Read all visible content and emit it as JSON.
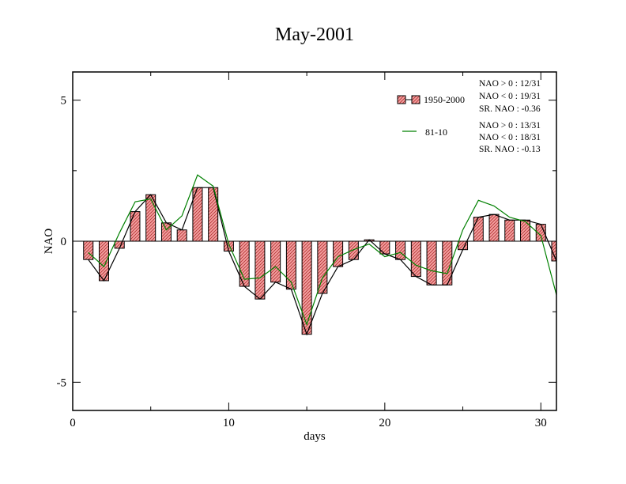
{
  "chart_data": {
    "type": "bar",
    "title": "May-2001",
    "xlabel": "days",
    "ylabel": "NAO",
    "xlim": [
      0,
      31
    ],
    "ylim": [
      -6,
      6
    ],
    "x_ticks": [
      "0",
      "10",
      "20",
      "30"
    ],
    "y_ticks": [
      "5",
      "0",
      "-5"
    ],
    "x": [
      1,
      2,
      3,
      4,
      5,
      6,
      7,
      8,
      9,
      10,
      11,
      12,
      13,
      14,
      15,
      16,
      17,
      18,
      19,
      20,
      21,
      22,
      23,
      24,
      25,
      26,
      27,
      28,
      29,
      30,
      31
    ],
    "series": [
      {
        "name": "1950-2000",
        "kind": "bar+line",
        "color": "#f08080",
        "values": [
          -0.65,
          -1.4,
          -0.25,
          1.05,
          1.65,
          0.65,
          0.4,
          1.9,
          1.9,
          -0.35,
          -1.6,
          -2.05,
          -1.45,
          -1.7,
          -3.3,
          -1.85,
          -0.9,
          -0.65,
          0.05,
          -0.45,
          -0.65,
          -1.25,
          -1.55,
          -1.55,
          -0.3,
          0.85,
          0.95,
          0.75,
          0.75,
          0.6,
          -0.7
        ]
      },
      {
        "name": "81-10",
        "kind": "line",
        "color": "#008000",
        "values": [
          -0.4,
          -0.9,
          0.3,
          1.4,
          1.5,
          0.4,
          0.9,
          2.35,
          1.95,
          -0.1,
          -1.35,
          -1.3,
          -0.9,
          -1.45,
          -2.95,
          -1.3,
          -0.55,
          -0.3,
          -0.1,
          -0.55,
          -0.4,
          -0.85,
          -1.05,
          -1.15,
          0.4,
          1.45,
          1.25,
          0.85,
          0.7,
          0.2,
          -1.9
        ]
      }
    ],
    "stats": [
      [
        "NAO > 0 : 12/31",
        "NAO < 0 : 19/31",
        "SR. NAO : -0.36"
      ],
      [
        "NAO > 0 : 13/31",
        "NAO < 0 : 18/31",
        "SR. NAO : -0.13"
      ]
    ],
    "legend": "top-right"
  }
}
